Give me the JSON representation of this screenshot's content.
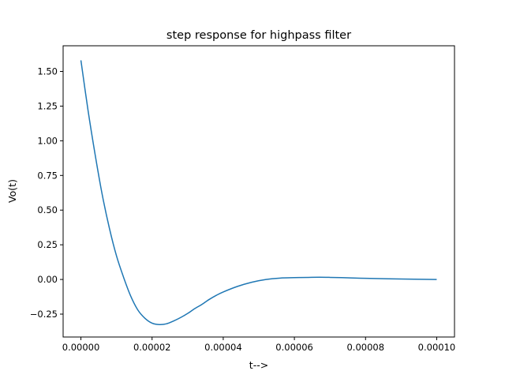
{
  "chart_data": {
    "type": "line",
    "title": "step response for highpass filter",
    "xlabel": "t-->",
    "ylabel": "Vo(t)",
    "xlim": [
      -5e-06,
      0.000105
    ],
    "ylim": [
      -0.415,
      1.685
    ],
    "x_ticks": [
      0,
      2e-05,
      4e-05,
      6e-05,
      8e-05,
      0.0001
    ],
    "x_tick_labels": [
      "0.00000",
      "0.00002",
      "0.00004",
      "0.00006",
      "0.00008",
      "0.00010"
    ],
    "y_ticks": [
      -0.25,
      0,
      0.25,
      0.5,
      0.75,
      1.0,
      1.25,
      1.5
    ],
    "y_tick_labels": [
      "−0.25",
      "0.00",
      "0.25",
      "0.50",
      "0.75",
      "1.00",
      "1.25",
      "1.50"
    ],
    "grid": false,
    "series": [
      {
        "color": "#1f77b4",
        "x": [
          0,
          2e-06,
          4e-06,
          6e-06,
          8e-06,
          1e-05,
          1.2e-05,
          1.4e-05,
          1.6e-05,
          1.8e-05,
          2e-05,
          2.2e-05,
          2.4e-05,
          2.6e-05,
          2.8e-05,
          3e-05,
          3.2e-05,
          3.4e-05,
          3.6e-05,
          3.8e-05,
          4e-05,
          4.4e-05,
          4.8e-05,
          5.2e-05,
          5.6e-05,
          6e-05,
          6.4e-05,
          6.7e-05,
          7e-05,
          7.5e-05,
          8e-05,
          9e-05,
          0.0001
        ],
        "y": [
          1.58,
          1.22,
          0.9,
          0.61,
          0.37,
          0.17,
          0.015,
          -0.12,
          -0.22,
          -0.28,
          -0.315,
          -0.325,
          -0.32,
          -0.3,
          -0.275,
          -0.245,
          -0.21,
          -0.18,
          -0.145,
          -0.115,
          -0.09,
          -0.05,
          -0.02,
          0.0,
          0.01,
          0.013,
          0.015,
          0.016,
          0.015,
          0.012,
          0.008,
          0.003,
          0.0
        ]
      }
    ]
  }
}
